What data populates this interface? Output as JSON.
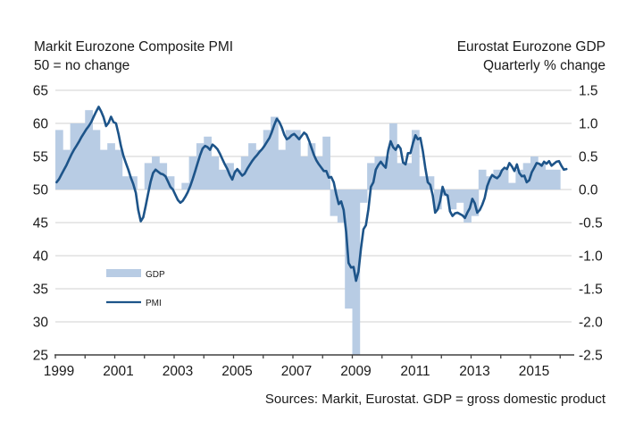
{
  "header": {
    "left_title": "Markit Eurozone Composite PMI",
    "left_subtitle": "50 = no change",
    "right_title": "Eurostat Eurozone GDP",
    "right_subtitle": "Quarterly % change"
  },
  "footer": {
    "source_note": "Sources: Markit, Eurostat. GDP = gross domestic product"
  },
  "legend": {
    "gdp_label": "GDP",
    "pmi_label": "PMI"
  },
  "colors": {
    "gdp_bar": "#b8cce4",
    "pmi_line": "#1d5489",
    "gridline": "#d9d9d9",
    "axis": "#404040",
    "text": "#1a1a1a"
  },
  "chart_data": {
    "type": "combo",
    "title": "Markit Eurozone Composite PMI vs Eurostat Eurozone GDP",
    "left_axis": {
      "label": "PMI, 50 = no change",
      "ticks": [
        "65",
        "60",
        "55",
        "50",
        "45",
        "40",
        "35",
        "30",
        "25"
      ],
      "min": 25,
      "max": 65
    },
    "right_axis": {
      "label": "GDP quarterly % change",
      "ticks": [
        "1.5",
        "1.0",
        "0.5",
        "0.0",
        "-0.5",
        "-1.0",
        "-1.5",
        "-2.0",
        "-2.5"
      ],
      "min": -2.5,
      "max": 1.5
    },
    "x_axis": {
      "labels": [
        "1999",
        "2001",
        "2003",
        "2005",
        "2007",
        "2009",
        "2011",
        "2013",
        "2015"
      ],
      "label_step_years": 2,
      "start_year": 1999,
      "end": 2016.4,
      "minor_tick_every_years": 1,
      "grid": "horizontal-only"
    },
    "series": [
      {
        "name": "GDP",
        "type": "bar",
        "axis": "right",
        "frequency": "quarterly",
        "start": "1999Q1",
        "end": "2015Q4",
        "values": [
          0.9,
          0.6,
          1.0,
          1.0,
          1.2,
          0.9,
          0.6,
          0.7,
          0.6,
          0.2,
          0.2,
          0.0,
          0.4,
          0.5,
          0.4,
          0.2,
          0.0,
          0.1,
          0.5,
          0.7,
          0.8,
          0.5,
          0.3,
          0.4,
          0.3,
          0.5,
          0.7,
          0.6,
          0.9,
          1.1,
          0.6,
          0.9,
          0.9,
          0.5,
          0.7,
          0.5,
          0.8,
          -0.4,
          -0.5,
          -1.8,
          -2.5,
          -0.2,
          0.4,
          0.5,
          0.5,
          1.0,
          0.4,
          0.4,
          0.9,
          0.2,
          0.2,
          -0.3,
          -0.1,
          -0.3,
          -0.2,
          -0.5,
          -0.4,
          0.3,
          0.2,
          0.3,
          0.3,
          0.1,
          0.3,
          0.4,
          0.5,
          0.4,
          0.3,
          0.3
        ]
      },
      {
        "name": "PMI",
        "type": "line",
        "axis": "left",
        "frequency": "monthly",
        "start": "1999-01",
        "end": "2016-03",
        "values": [
          51.1,
          51.6,
          52.3,
          53.0,
          53.7,
          54.5,
          55.3,
          56.0,
          56.6,
          57.2,
          57.9,
          58.5,
          59.1,
          59.6,
          60.2,
          61.0,
          61.8,
          62.5,
          61.8,
          60.9,
          59.6,
          60.1,
          61.0,
          60.2,
          60.0,
          58.4,
          56.6,
          55.1,
          54.0,
          53.0,
          51.8,
          50.8,
          49.5,
          46.9,
          45.2,
          45.8,
          47.5,
          49.4,
          51.2,
          52.5,
          53.0,
          52.7,
          52.4,
          52.3,
          52.0,
          51.2,
          50.4,
          50.0,
          49.2,
          48.4,
          48.0,
          48.3,
          48.9,
          49.6,
          50.5,
          51.6,
          52.8,
          54.0,
          55.2,
          56.2,
          56.6,
          56.4,
          56.0,
          56.8,
          56.5,
          56.1,
          55.4,
          54.6,
          53.8,
          53.1,
          52.2,
          51.5,
          52.6,
          53.1,
          52.6,
          52.1,
          52.4,
          53.1,
          53.7,
          54.3,
          54.8,
          55.2,
          55.7,
          56.1,
          56.6,
          57.2,
          57.8,
          58.7,
          59.8,
          60.7,
          60.2,
          59.4,
          58.3,
          57.6,
          57.8,
          58.2,
          58.4,
          58.0,
          57.6,
          58.1,
          58.6,
          58.3,
          57.4,
          56.3,
          55.2,
          54.4,
          53.8,
          53.3,
          52.8,
          52.8,
          51.8,
          51.9,
          51.1,
          49.3,
          47.8,
          48.2,
          46.9,
          43.6,
          38.9,
          38.2,
          38.3,
          36.2,
          37.6,
          41.1,
          44.0,
          44.6,
          47.0,
          50.4,
          51.1,
          53.0,
          53.7,
          54.2,
          53.7,
          53.3,
          55.9,
          57.3,
          56.4,
          56.0,
          56.7,
          56.2,
          54.1,
          53.8,
          55.5,
          55.5,
          57.0,
          58.2,
          57.6,
          57.8,
          55.8,
          53.3,
          51.1,
          50.7,
          49.1,
          46.5,
          47.0,
          48.3,
          50.4,
          49.3,
          49.1,
          46.7,
          46.0,
          46.4,
          46.5,
          46.3,
          46.1,
          45.7,
          46.5,
          47.2,
          48.6,
          47.9,
          46.5,
          46.9,
          47.7,
          48.7,
          50.5,
          51.5,
          52.2,
          51.9,
          51.7,
          52.1,
          52.9,
          53.3,
          53.1,
          54.0,
          53.5,
          52.8,
          53.8,
          52.5,
          52.0,
          52.1,
          51.1,
          51.4,
          52.6,
          53.3,
          54.0,
          53.9,
          53.6,
          54.2,
          53.9,
          54.3,
          53.6,
          53.9,
          54.2,
          54.3,
          53.6,
          53.0,
          53.1
        ]
      }
    ]
  }
}
